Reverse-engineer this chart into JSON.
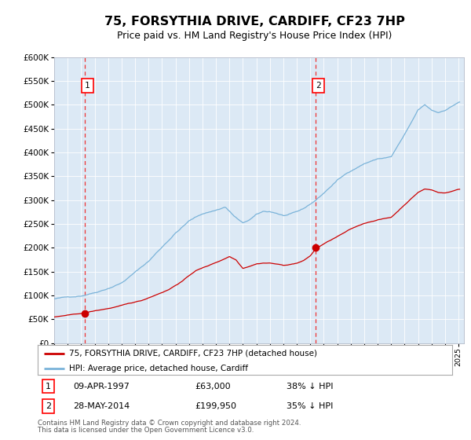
{
  "title": "75, FORSYTHIA DRIVE, CARDIFF, CF23 7HP",
  "subtitle": "Price paid vs. HM Land Registry's House Price Index (HPI)",
  "legend_line1": "75, FORSYTHIA DRIVE, CARDIFF, CF23 7HP (detached house)",
  "legend_line2": "HPI: Average price, detached house, Cardiff",
  "purchase1_date": "09-APR-1997",
  "purchase1_price": 63000,
  "purchase1_hpi_diff": "38% ↓ HPI",
  "purchase2_date": "28-MAY-2014",
  "purchase2_price": 199950,
  "purchase2_hpi_diff": "35% ↓ HPI",
  "footnote1": "Contains HM Land Registry data © Crown copyright and database right 2024.",
  "footnote2": "This data is licensed under the Open Government Licence v3.0.",
  "hpi_color": "#7ab3d9",
  "price_color": "#cc0000",
  "vline_color": "#ee3333",
  "plot_bg": "#dce9f5",
  "ylim": [
    0,
    600000
  ],
  "xlim_start": 1995.5,
  "xlim_end": 2025.4,
  "purchase1_year": 1997.27,
  "purchase2_year": 2014.41,
  "hpi_anchors_t": [
    1995.0,
    1996.0,
    1997.0,
    1998.0,
    1999.0,
    2000.0,
    2001.0,
    2002.0,
    2003.0,
    2004.0,
    2005.0,
    2006.0,
    2007.0,
    2007.7,
    2008.3,
    2009.0,
    2009.5,
    2010.0,
    2010.5,
    2011.0,
    2011.5,
    2012.0,
    2012.5,
    2013.0,
    2013.5,
    2014.0,
    2014.4,
    2015.0,
    2016.0,
    2017.0,
    2018.0,
    2019.0,
    2020.0,
    2020.5,
    2021.0,
    2021.5,
    2022.0,
    2022.5,
    2023.0,
    2023.5,
    2024.0,
    2024.5,
    2025.0
  ],
  "hpi_anchors_p": [
    93000,
    96000,
    100000,
    108000,
    118000,
    130000,
    152000,
    175000,
    205000,
    235000,
    260000,
    275000,
    283000,
    290000,
    272000,
    255000,
    262000,
    272000,
    278000,
    278000,
    275000,
    270000,
    272000,
    276000,
    282000,
    292000,
    300000,
    315000,
    342000,
    362000,
    378000,
    388000,
    392000,
    415000,
    438000,
    462000,
    488000,
    498000,
    487000,
    482000,
    488000,
    496000,
    505000
  ],
  "price_anchors_t": [
    1995.0,
    1996.5,
    1997.27,
    1998.0,
    1999.0,
    2000.0,
    2001.5,
    2002.5,
    2003.5,
    2004.5,
    2005.5,
    2006.5,
    2007.5,
    2008.0,
    2008.5,
    2009.0,
    2009.5,
    2010.0,
    2010.5,
    2011.0,
    2011.5,
    2012.0,
    2012.5,
    2013.0,
    2013.5,
    2014.0,
    2014.41,
    2015.0,
    2016.0,
    2017.0,
    2018.0,
    2019.0,
    2020.0,
    2020.5,
    2021.0,
    2021.5,
    2022.0,
    2022.5,
    2023.0,
    2023.5,
    2024.0,
    2024.5,
    2025.0
  ],
  "price_anchors_p": [
    55000,
    60000,
    63000,
    67000,
    72000,
    78000,
    88000,
    100000,
    112000,
    130000,
    152000,
    163000,
    175000,
    182000,
    175000,
    158000,
    163000,
    168000,
    170000,
    170000,
    168000,
    165000,
    167000,
    170000,
    175000,
    185000,
    199950,
    210000,
    225000,
    240000,
    252000,
    260000,
    265000,
    278000,
    292000,
    305000,
    318000,
    325000,
    323000,
    318000,
    317000,
    320000,
    325000
  ]
}
